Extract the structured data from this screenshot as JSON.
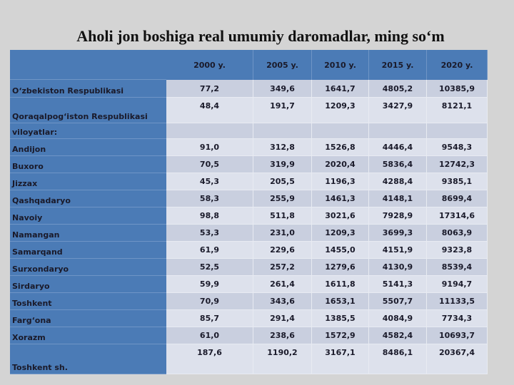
{
  "title": "Aholi jon boshiga real umumiy daromadlar, ming so‘m",
  "table": {
    "header": [
      "2000 y.",
      "2005 y.",
      "2010 y.",
      "2015 y.",
      "2020 y."
    ],
    "rows": [
      [
        "O‘zbekiston Respublikasi",
        "77,2",
        "349,6",
        "1641,7",
        "4805,2",
        "10385,9"
      ],
      [
        "Qoraqalpog‘iston Respublikasi",
        "48,4",
        "191,7",
        "1209,3",
        "3427,9",
        "8121,1"
      ],
      [
        "viloyatlar:"
      ],
      [
        "Andijon",
        "91,0",
        "312,8",
        "1526,8",
        "4446,4",
        "9548,3"
      ],
      [
        "Buxoro",
        "70,5",
        "319,9",
        "2020,4",
        "5836,4",
        "12742,3"
      ],
      [
        "Jizzax",
        "45,3",
        "205,5",
        "1196,3",
        "4288,4",
        "9385,1"
      ],
      [
        "Qashqadaryo",
        "58,3",
        "255,9",
        "1461,3",
        "4148,1",
        "8699,4"
      ],
      [
        "Navoiy",
        "98,8",
        "511,8",
        "3021,6",
        "7928,9",
        "17314,6"
      ],
      [
        "Namangan",
        "53,3",
        "231,0",
        "1209,3",
        "3699,3",
        "8063,9"
      ],
      [
        "Samarqand",
        "61,9",
        "229,6",
        "1455,0",
        "4151,9",
        "9323,8"
      ],
      [
        "Surxondaryo",
        "52,5",
        "257,2",
        "1279,6",
        "4130,9",
        "8539,4"
      ],
      [
        "Sirdaryo",
        "59,9",
        "261,4",
        "1611,8",
        "5141,3",
        "9194,7"
      ],
      [
        "Toshkent",
        "70,9",
        "343,6",
        "1653,1",
        "5507,7",
        "11133,5"
      ],
      [
        "Farg‘ona",
        "85,7",
        "291,4",
        "1385,5",
        "4084,9",
        "7734,3"
      ],
      [
        "Xorazm",
        "61,0",
        "238,6",
        "1572,9",
        "4582,4",
        "10693,7"
      ],
      [
        "Toshkent sh.",
        "187,6",
        "1190,2",
        "3167,1",
        "8486,1",
        "20367,4"
      ]
    ]
  }
}
